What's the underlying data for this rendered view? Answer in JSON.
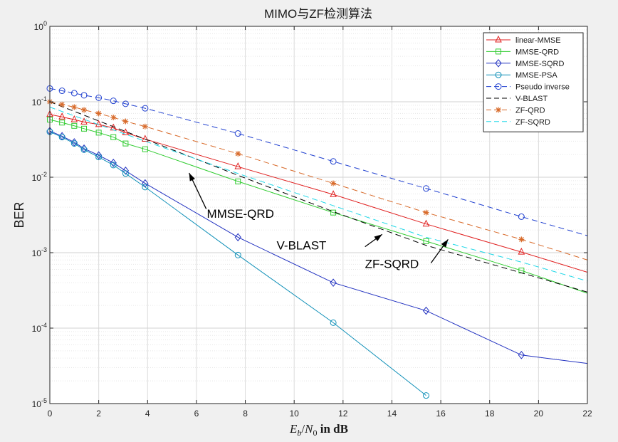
{
  "chart_data": {
    "type": "line",
    "title": "MIMO与ZF检测算法",
    "xlabel_parts": {
      "e": "E",
      "b": "b",
      "slash": "/",
      "n": "N",
      "zero": "0",
      "tail": " in dB"
    },
    "ylabel": "BER",
    "xlim": [
      0,
      22
    ],
    "ylim": [
      1e-05,
      1
    ],
    "yscale": "log",
    "grid": true,
    "legend_position": "top-right",
    "x_ticks": [
      "0",
      "2",
      "4",
      "6",
      "8",
      "10",
      "12",
      "14",
      "16",
      "18",
      "20",
      "22"
    ],
    "y_ticks": [
      {
        "base": "10",
        "exp": "0"
      },
      {
        "base": "10",
        "exp": "-1"
      },
      {
        "base": "10",
        "exp": "-2"
      },
      {
        "base": "10",
        "exp": "-3"
      },
      {
        "base": "10",
        "exp": "-4"
      },
      {
        "base": "10",
        "exp": "-5"
      }
    ],
    "series": [
      {
        "name": "linear-MMSE",
        "color": "#e02020",
        "dash": "solid",
        "marker": "triangle",
        "points": [
          [
            0,
            0.068
          ],
          [
            0.5,
            0.063
          ],
          [
            1,
            0.058
          ],
          [
            1.4,
            0.054
          ],
          [
            2,
            0.05
          ],
          [
            2.6,
            0.045
          ],
          [
            3.1,
            0.039
          ],
          [
            3.9,
            0.032
          ],
          [
            7.7,
            0.0138
          ],
          [
            11.6,
            0.0059
          ],
          [
            15.4,
            0.0024
          ],
          [
            19.3,
            0.00102
          ],
          [
            22,
            0.00055
          ]
        ],
        "markers": [
          [
            0,
            0.068
          ],
          [
            0.5,
            0.063
          ],
          [
            1,
            0.058
          ],
          [
            1.4,
            0.054
          ],
          [
            2,
            0.05
          ],
          [
            2.6,
            0.045
          ],
          [
            3.1,
            0.039
          ],
          [
            3.9,
            0.032
          ],
          [
            7.7,
            0.0138
          ],
          [
            11.6,
            0.0059
          ],
          [
            15.4,
            0.0024
          ],
          [
            19.3,
            0.00102
          ]
        ]
      },
      {
        "name": "MMSE-QRD",
        "color": "#30cc30",
        "dash": "solid",
        "marker": "square",
        "points": [
          [
            0,
            0.058
          ],
          [
            0.5,
            0.053
          ],
          [
            1,
            0.048
          ],
          [
            1.4,
            0.044
          ],
          [
            2,
            0.039
          ],
          [
            2.6,
            0.034
          ],
          [
            3.1,
            0.028
          ],
          [
            3.9,
            0.0235
          ],
          [
            7.7,
            0.0088
          ],
          [
            11.6,
            0.0034
          ],
          [
            15.4,
            0.00142
          ],
          [
            19.3,
            0.00058
          ],
          [
            22,
            0.00029
          ]
        ],
        "markers": [
          [
            0,
            0.058
          ],
          [
            0.5,
            0.053
          ],
          [
            1,
            0.048
          ],
          [
            1.4,
            0.044
          ],
          [
            2,
            0.039
          ],
          [
            2.6,
            0.034
          ],
          [
            3.1,
            0.028
          ],
          [
            3.9,
            0.0235
          ],
          [
            7.7,
            0.0088
          ],
          [
            11.6,
            0.0034
          ],
          [
            15.4,
            0.00142
          ],
          [
            19.3,
            0.00058
          ]
        ]
      },
      {
        "name": "MMSE-SQRD",
        "color": "#2030c0",
        "dash": "solid",
        "marker": "diamond",
        "points": [
          [
            0,
            0.041
          ],
          [
            0.5,
            0.035
          ],
          [
            1,
            0.029
          ],
          [
            1.4,
            0.024
          ],
          [
            2,
            0.0195
          ],
          [
            2.6,
            0.0155
          ],
          [
            3.1,
            0.0122
          ],
          [
            3.9,
            0.0083
          ],
          [
            7.7,
            0.0016
          ],
          [
            11.6,
            0.0004
          ],
          [
            15.4,
            0.00017
          ],
          [
            19.3,
            4.4e-05
          ],
          [
            22,
            3.4e-05
          ]
        ],
        "markers": [
          [
            0,
            0.041
          ],
          [
            0.5,
            0.035
          ],
          [
            1,
            0.029
          ],
          [
            1.4,
            0.024
          ],
          [
            2,
            0.0195
          ],
          [
            2.6,
            0.0155
          ],
          [
            3.1,
            0.0122
          ],
          [
            3.9,
            0.0083
          ],
          [
            7.7,
            0.0016
          ],
          [
            11.6,
            0.0004
          ],
          [
            15.4,
            0.00017
          ],
          [
            19.3,
            4.4e-05
          ]
        ]
      },
      {
        "name": "MMSE-PSA",
        "color": "#1090b8",
        "dash": "solid",
        "marker": "circle",
        "points": [
          [
            0,
            0.04
          ],
          [
            0.5,
            0.034
          ],
          [
            1,
            0.028
          ],
          [
            1.4,
            0.0232
          ],
          [
            2,
            0.0185
          ],
          [
            2.6,
            0.0145
          ],
          [
            3.1,
            0.0112
          ],
          [
            3.9,
            0.0074
          ],
          [
            7.7,
            0.00093
          ],
          [
            11.6,
            0.000118
          ],
          [
            15.4,
            1.28e-05
          ]
        ],
        "markers": [
          [
            0,
            0.04
          ],
          [
            0.5,
            0.034
          ],
          [
            1,
            0.028
          ],
          [
            1.4,
            0.0232
          ],
          [
            2,
            0.0185
          ],
          [
            2.6,
            0.0145
          ],
          [
            3.1,
            0.0112
          ],
          [
            3.9,
            0.0074
          ],
          [
            7.7,
            0.00093
          ],
          [
            11.6,
            0.000118
          ],
          [
            15.4,
            1.28e-05
          ]
        ]
      },
      {
        "name": "Pseudo inverse",
        "color": "#2040d0",
        "dash": "dashed",
        "marker": "circle",
        "points": [
          [
            0,
            0.15
          ],
          [
            0.5,
            0.14
          ],
          [
            1,
            0.13
          ],
          [
            1.4,
            0.122
          ],
          [
            2,
            0.113
          ],
          [
            2.6,
            0.103
          ],
          [
            3.1,
            0.094
          ],
          [
            3.9,
            0.082
          ],
          [
            7.7,
            0.038
          ],
          [
            11.6,
            0.0162
          ],
          [
            15.4,
            0.0071
          ],
          [
            19.3,
            0.003
          ],
          [
            22,
            0.00168
          ]
        ],
        "markers": [
          [
            0,
            0.15
          ],
          [
            0.5,
            0.14
          ],
          [
            1,
            0.13
          ],
          [
            1.4,
            0.122
          ],
          [
            2,
            0.113
          ],
          [
            2.6,
            0.103
          ],
          [
            3.1,
            0.094
          ],
          [
            3.9,
            0.082
          ],
          [
            7.7,
            0.038
          ],
          [
            11.6,
            0.0162
          ],
          [
            15.4,
            0.0071
          ],
          [
            19.3,
            0.003
          ]
        ]
      },
      {
        "name": "V-BLAST",
        "color": "#000000",
        "dash": "dashed",
        "marker": "none",
        "points": [
          [
            0,
            0.1
          ],
          [
            3.9,
            0.032
          ],
          [
            7.7,
            0.0106
          ],
          [
            11.6,
            0.0035
          ],
          [
            15.4,
            0.00125
          ],
          [
            19.3,
            0.00054
          ],
          [
            22,
            0.0003
          ]
        ],
        "markers": []
      },
      {
        "name": "ZF-QRD",
        "color": "#d86a2a",
        "dash": "dashed",
        "marker": "star",
        "points": [
          [
            0,
            0.1
          ],
          [
            0.5,
            0.092
          ],
          [
            1,
            0.085
          ],
          [
            1.4,
            0.078
          ],
          [
            2,
            0.07
          ],
          [
            2.6,
            0.062
          ],
          [
            3.1,
            0.055
          ],
          [
            3.9,
            0.047
          ],
          [
            7.7,
            0.0205
          ],
          [
            11.6,
            0.0083
          ],
          [
            15.4,
            0.0034
          ],
          [
            19.3,
            0.0015
          ],
          [
            22,
            0.0008
          ]
        ],
        "markers": [
          [
            0,
            0.1
          ],
          [
            0.5,
            0.092
          ],
          [
            1,
            0.085
          ],
          [
            1.4,
            0.078
          ],
          [
            2,
            0.07
          ],
          [
            2.6,
            0.062
          ],
          [
            3.1,
            0.055
          ],
          [
            3.9,
            0.047
          ],
          [
            7.7,
            0.0205
          ],
          [
            11.6,
            0.0083
          ],
          [
            15.4,
            0.0034
          ],
          [
            19.3,
            0.0015
          ]
        ]
      },
      {
        "name": "ZF-SQRD",
        "color": "#20d8e8",
        "dash": "dashed",
        "marker": "none",
        "points": [
          [
            0,
            0.085
          ],
          [
            3.9,
            0.03
          ],
          [
            7.7,
            0.0112
          ],
          [
            11.6,
            0.0042
          ],
          [
            15.4,
            0.0016
          ],
          [
            19.3,
            0.00075
          ],
          [
            22,
            0.00042
          ]
        ],
        "markers": []
      }
    ],
    "annotations": [
      {
        "text": "MMSE-QRD",
        "label_x": 7.8,
        "label_y": 0.0029,
        "arrow_from": [
          6.4,
          0.0038
        ],
        "arrow_to": [
          5.7,
          0.0114
        ],
        "size": "large"
      },
      {
        "text": "V-BLAST",
        "label_x": 10.3,
        "label_y": 0.0011,
        "arrow_from": [
          12.9,
          0.0012
        ],
        "arrow_to": [
          13.6,
          0.00175
        ],
        "size": "large"
      },
      {
        "text": "ZF-SQRD",
        "label_x": 14.0,
        "label_y": 0.00063,
        "arrow_from": [
          15.6,
          0.00073
        ],
        "arrow_to": [
          16.3,
          0.0015
        ],
        "size": "large"
      }
    ]
  }
}
